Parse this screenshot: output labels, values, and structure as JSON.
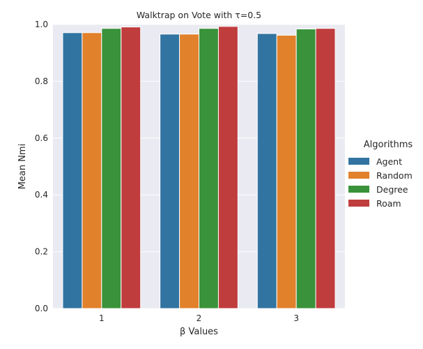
{
  "chart_data": {
    "type": "bar",
    "title": "Walktrap on Vote with τ=0.5",
    "xlabel": "β Values",
    "ylabel": "Mean Nmi",
    "categories": [
      "1",
      "2",
      "3"
    ],
    "ylim": [
      0,
      1.0
    ],
    "yticks": [
      "0.0",
      "0.2",
      "0.4",
      "0.6",
      "0.8",
      "1.0"
    ],
    "grid": true,
    "legend": {
      "title": "Algorithms",
      "placement": "right",
      "entries": [
        "Agent",
        "Random",
        "Degree",
        "Roam"
      ]
    },
    "series": [
      {
        "name": "Agent",
        "color": "#3274a1",
        "values": [
          0.971,
          0.966,
          0.968
        ]
      },
      {
        "name": "Random",
        "color": "#e1812c",
        "values": [
          0.971,
          0.966,
          0.962
        ]
      },
      {
        "name": "Degree",
        "color": "#3a923a",
        "values": [
          0.986,
          0.986,
          0.984
        ]
      },
      {
        "name": "Roam",
        "color": "#c03d3e",
        "values": [
          0.991,
          0.993,
          0.986
        ]
      }
    ],
    "background_color": "#eaeaf2",
    "grid_color": "#ffffff"
  }
}
